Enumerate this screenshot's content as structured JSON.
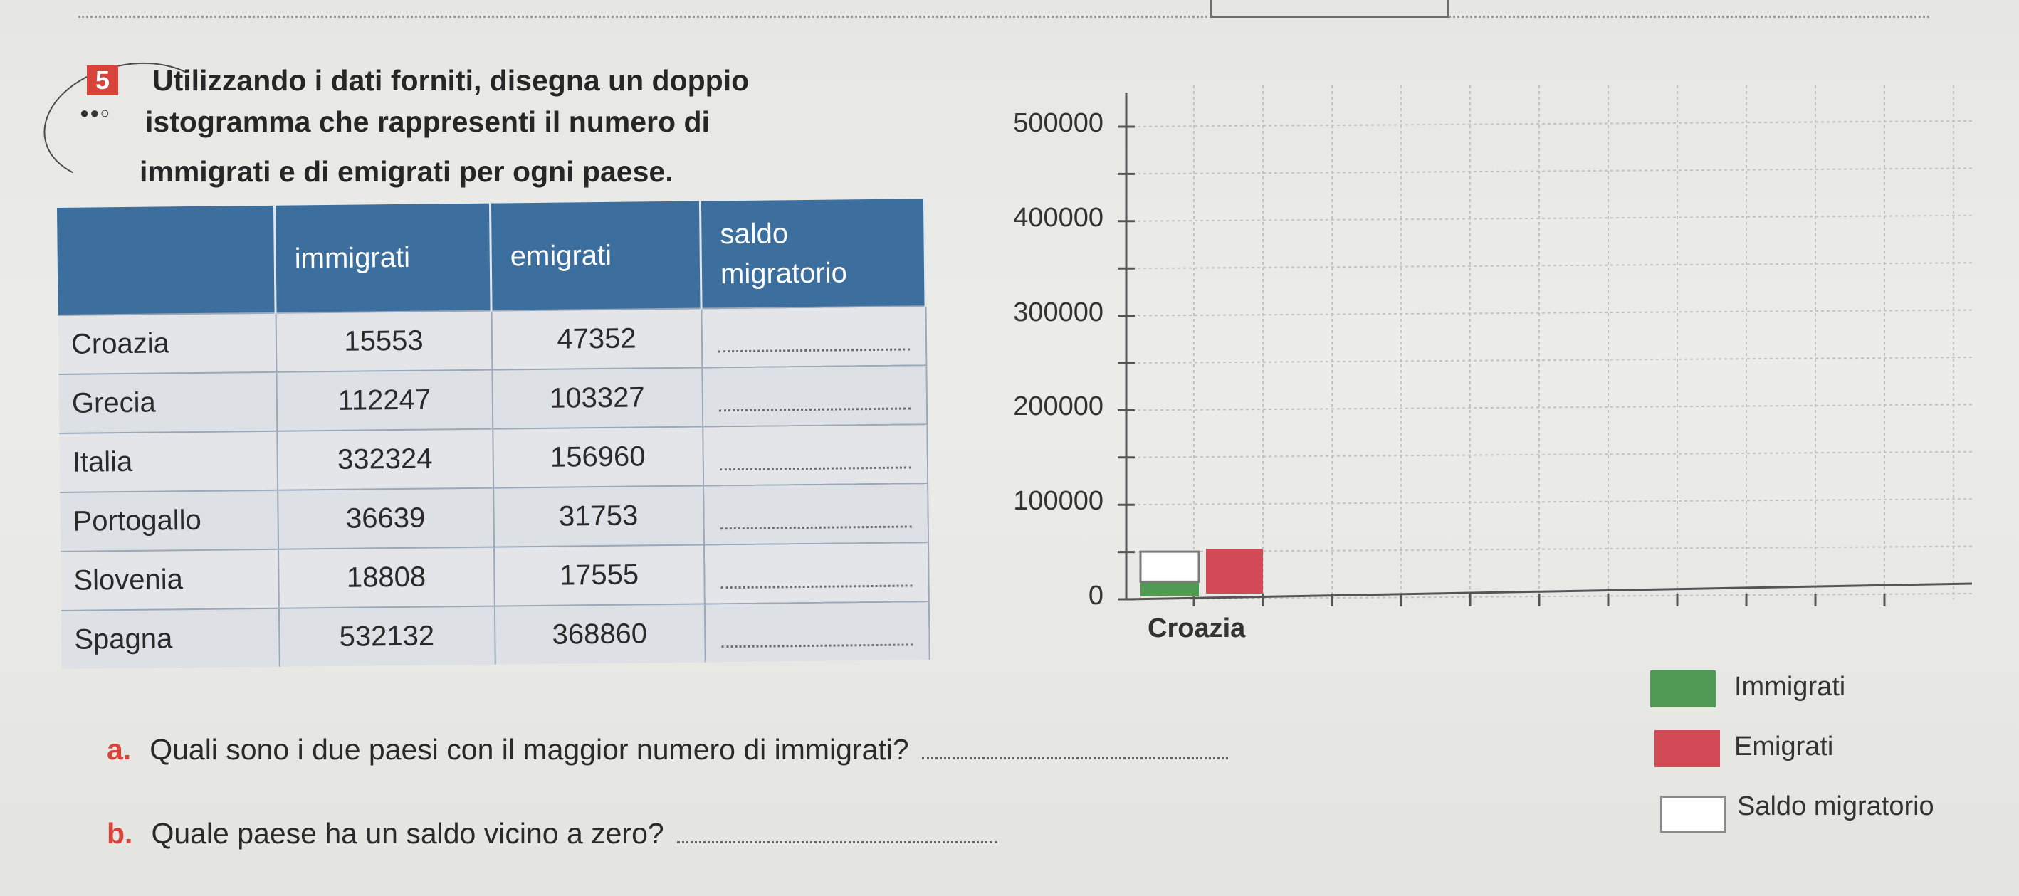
{
  "exercise": {
    "number": "5",
    "difficulty_dots": "●●○",
    "instruction_lines": [
      "Utilizzando i dati forniti, disegna un doppio",
      "istogramma che rappresenti il numero di",
      "immigrati e di emigrati per ogni paese."
    ]
  },
  "table": {
    "headers": [
      "",
      "immigrati",
      "emigrati",
      "saldo migratorio"
    ],
    "rows": [
      {
        "country": "Croazia",
        "immigrati": "15553",
        "emigrati": "47352",
        "saldo": ""
      },
      {
        "country": "Grecia",
        "immigrati": "112247",
        "emigrati": "103327",
        "saldo": ""
      },
      {
        "country": "Italia",
        "immigrati": "332324",
        "emigrati": "156960",
        "saldo": ""
      },
      {
        "country": "Portogallo",
        "immigrati": "36639",
        "emigrati": "31753",
        "saldo": ""
      },
      {
        "country": "Slovenia",
        "immigrati": "18808",
        "emigrati": "17555",
        "saldo": ""
      },
      {
        "country": "Spagna",
        "immigrati": "532132",
        "emigrati": "368860",
        "saldo": ""
      }
    ]
  },
  "chart_data": {
    "type": "bar",
    "categories": [
      "Croazia"
    ],
    "series": [
      {
        "name": "Immigrati",
        "values": [
          15553
        ],
        "color": "#4f9b53"
      },
      {
        "name": "Emigrati",
        "values": [
          47352
        ],
        "color": "#d14a55"
      },
      {
        "name": "Saldo migratorio",
        "values": [
          31799
        ],
        "color": "#ffffff"
      }
    ],
    "yticks": [
      "0",
      "100000",
      "200000",
      "300000",
      "400000",
      "500000"
    ],
    "ylim": [
      0,
      500000
    ],
    "grid": true,
    "legend_position": "bottom-right"
  },
  "legend": [
    {
      "label": "Immigrati",
      "color": "#4f9b53"
    },
    {
      "label": "Emigrati",
      "color": "#d14a55"
    },
    {
      "label": "Saldo migratorio",
      "color": "#ffffff"
    }
  ],
  "questions": [
    {
      "letter": "a.",
      "text": "Quali sono i due paesi con il maggior numero di immigrati?"
    },
    {
      "letter": "b.",
      "text": "Quale paese ha un saldo vicino a zero?"
    }
  ]
}
